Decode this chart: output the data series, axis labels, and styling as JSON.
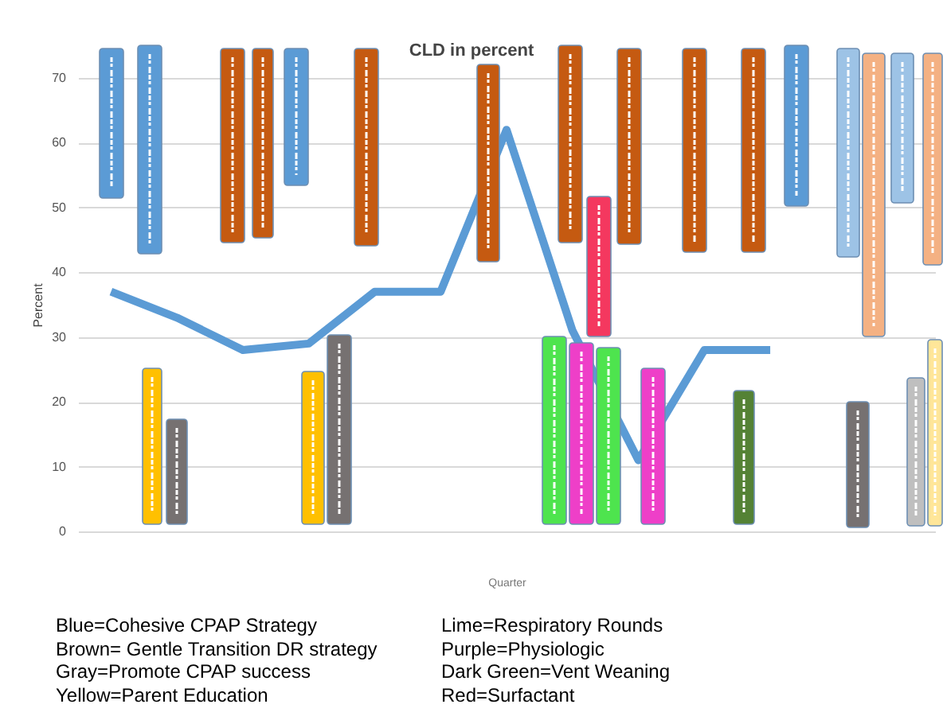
{
  "chart_data": {
    "type": "line",
    "title": "CLD in percent",
    "xlabel": "Quarter",
    "ylabel": "Percent",
    "categories": [
      null,
      null,
      null,
      null,
      null,
      null,
      null,
      null,
      null,
      null,
      null,
      null,
      null
    ],
    "series": [
      {
        "color": "#5b9bd5",
        "values": [
          37,
          33,
          28,
          29,
          37,
          37,
          62,
          31,
          11,
          28,
          28,
          null,
          null
        ]
      }
    ],
    "ylim": [
      0,
      70
    ],
    "yticks": [
      0,
      10,
      20,
      30,
      40,
      50,
      60,
      70
    ],
    "grid": "y",
    "marker": "none",
    "legend": false,
    "annotations": [
      "Blue=Cohesive CPAP Strategy",
      "Brown= Gentle Transition DR strategy",
      "Gray=Promote CPAP success",
      "Yellow=Parent Education",
      "Lime=Respiratory Rounds",
      "Purple=Physiologic",
      "Dark Green=Vent Weaning",
      "Red=Surfactant"
    ]
  }
}
